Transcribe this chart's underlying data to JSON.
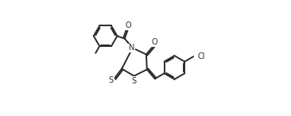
{
  "bg_color": "#ffffff",
  "line_color": "#2b2b2b",
  "line_width": 1.4,
  "fig_width": 3.66,
  "fig_height": 1.46,
  "dpi": 100,
  "xlim": [
    0,
    12
  ],
  "ylim": [
    0,
    8
  ]
}
